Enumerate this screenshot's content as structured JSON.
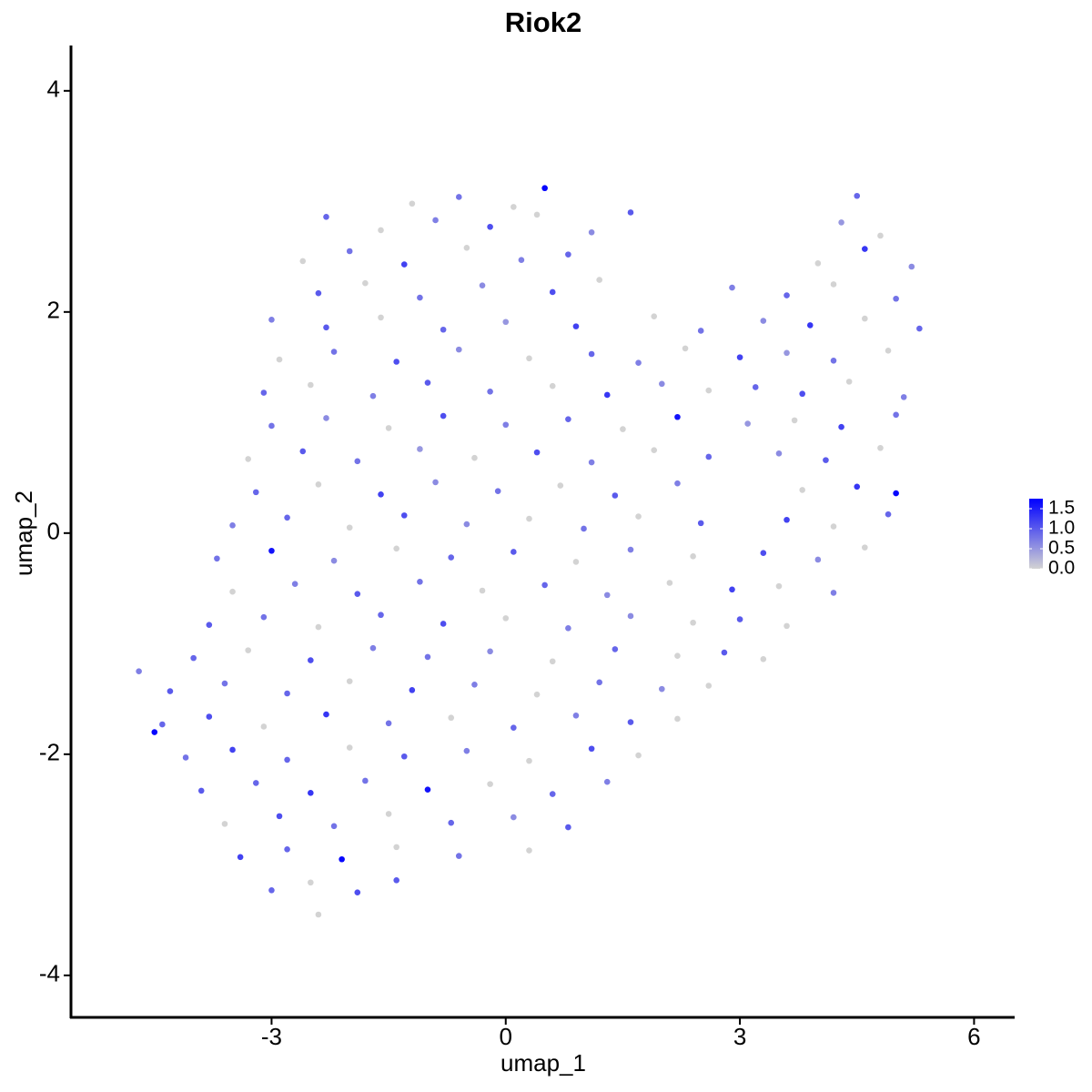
{
  "chart_data": {
    "type": "scatter",
    "title": "Riok2",
    "x_label": "umap_1",
    "y_label": "umap_2",
    "xlim": [
      -5.57,
      6.52
    ],
    "ylim": [
      -4.38,
      4.41
    ],
    "xticks": [
      -3,
      0,
      3,
      6
    ],
    "yticks": [
      -4,
      -2,
      0,
      2,
      4
    ],
    "color_low": "#d3d3d3",
    "color_high": "#0000ff",
    "color_lim": [
      0,
      1.75
    ],
    "color_ticks": [
      {
        "value": 0,
        "label": "0.0"
      },
      0.5,
      {
        "value": 1,
        "label": "1.0"
      },
      1.5
    ],
    "x": [
      -1.2,
      -0.6,
      0.1,
      0.5,
      4.5,
      -2.3,
      -1.6,
      -0.9,
      -0.2,
      0.4,
      1.1,
      1.6,
      4.3,
      4.8,
      -2.6,
      -2.0,
      -1.3,
      -0.5,
      0.2,
      0.8,
      4.0,
      4.6,
      5.2,
      -2.4,
      -1.8,
      -1.1,
      -0.3,
      0.6,
      1.2,
      2.9,
      3.6,
      4.2,
      5.0,
      -3.0,
      -2.3,
      -1.6,
      -0.8,
      0.0,
      0.9,
      1.9,
      2.5,
      3.3,
      3.9,
      4.6,
      5.3,
      -2.9,
      -2.2,
      -1.4,
      -0.6,
      0.3,
      1.1,
      1.7,
      2.3,
      3.0,
      3.6,
      4.2,
      4.9,
      -3.1,
      -2.5,
      -1.7,
      -1.0,
      -0.2,
      0.6,
      1.3,
      2.0,
      2.6,
      3.2,
      3.8,
      4.4,
      5.1,
      -3.0,
      -2.3,
      -1.5,
      -0.8,
      0.0,
      0.8,
      1.5,
      2.2,
      3.1,
      3.7,
      4.3,
      5.0,
      -3.3,
      -2.6,
      -1.9,
      -1.1,
      -0.4,
      0.4,
      1.1,
      1.9,
      2.6,
      3.5,
      4.1,
      4.8,
      -3.2,
      -2.4,
      -1.6,
      -0.9,
      -0.1,
      0.7,
      1.4,
      2.2,
      3.8,
      4.5,
      5.0,
      -3.5,
      -2.8,
      -2.0,
      -1.3,
      -0.5,
      0.3,
      1.0,
      1.7,
      2.5,
      3.6,
      4.2,
      4.9,
      -3.7,
      -3.0,
      -2.2,
      -1.4,
      -0.7,
      0.1,
      0.9,
      1.6,
      2.4,
      3.3,
      4.0,
      4.6,
      -3.5,
      -2.7,
      -1.9,
      -1.1,
      -0.3,
      0.5,
      1.3,
      2.1,
      2.9,
      3.5,
      4.2,
      -3.8,
      -3.1,
      -2.4,
      -1.6,
      -0.8,
      0.0,
      0.8,
      1.6,
      2.4,
      3.0,
      3.6,
      -4.0,
      -3.3,
      -2.5,
      -1.7,
      -1.0,
      -0.2,
      0.6,
      1.4,
      2.2,
      2.8,
      3.3,
      -4.3,
      -3.6,
      -2.8,
      -2.0,
      -1.2,
      -0.4,
      0.4,
      1.2,
      2.0,
      2.6,
      -4.4,
      -3.8,
      -3.1,
      -2.3,
      -1.5,
      -0.7,
      0.1,
      0.9,
      1.6,
      2.2,
      -4.1,
      -3.5,
      -2.8,
      -2.0,
      -1.3,
      -0.5,
      0.3,
      1.1,
      1.7,
      -3.9,
      -3.2,
      -2.5,
      -1.8,
      -1.0,
      -0.2,
      0.6,
      1.3,
      -3.6,
      -2.9,
      -2.2,
      -1.5,
      -0.7,
      0.1,
      0.8,
      -3.4,
      -2.8,
      -2.1,
      -1.4,
      -0.6,
      0.3,
      -3.0,
      -2.5,
      -1.9,
      -1.4,
      -2.4,
      -4.7,
      -4.5
    ],
    "y": [
      2.98,
      3.04,
      2.95,
      3.12,
      3.05,
      2.86,
      2.74,
      2.83,
      2.77,
      2.88,
      2.72,
      2.9,
      2.81,
      2.69,
      2.46,
      2.55,
      2.43,
      2.58,
      2.47,
      2.52,
      2.44,
      2.57,
      2.41,
      2.17,
      2.26,
      2.13,
      2.24,
      2.18,
      2.29,
      2.22,
      2.15,
      2.25,
      2.12,
      1.93,
      1.86,
      1.95,
      1.84,
      1.91,
      1.87,
      1.96,
      1.83,
      1.92,
      1.88,
      1.94,
      1.85,
      1.57,
      1.64,
      1.55,
      1.66,
      1.58,
      1.62,
      1.54,
      1.67,
      1.59,
      1.63,
      1.56,
      1.65,
      1.27,
      1.34,
      1.24,
      1.36,
      1.28,
      1.33,
      1.25,
      1.35,
      1.29,
      1.32,
      1.26,
      1.37,
      1.23,
      0.97,
      1.04,
      0.95,
      1.06,
      0.98,
      1.03,
      0.94,
      1.05,
      0.99,
      1.02,
      0.96,
      1.07,
      0.67,
      0.74,
      0.65,
      0.76,
      0.68,
      0.73,
      0.64,
      0.75,
      0.69,
      0.72,
      0.66,
      0.77,
      0.37,
      0.44,
      0.35,
      0.46,
      0.38,
      0.43,
      0.34,
      0.45,
      0.39,
      0.42,
      0.36,
      0.07,
      0.14,
      0.05,
      0.16,
      0.08,
      0.13,
      0.04,
      0.15,
      0.09,
      0.12,
      0.06,
      0.17,
      -0.23,
      -0.16,
      -0.25,
      -0.14,
      -0.22,
      -0.17,
      -0.26,
      -0.15,
      -0.21,
      -0.18,
      -0.24,
      -0.13,
      -0.53,
      -0.46,
      -0.55,
      -0.44,
      -0.52,
      -0.47,
      -0.56,
      -0.45,
      -0.51,
      -0.48,
      -0.54,
      -0.83,
      -0.76,
      -0.85,
      -0.74,
      -0.82,
      -0.77,
      -0.86,
      -0.75,
      -0.81,
      -0.78,
      -0.84,
      -1.13,
      -1.06,
      -1.15,
      -1.04,
      -1.12,
      -1.07,
      -1.16,
      -1.05,
      -1.11,
      -1.08,
      -1.14,
      -1.43,
      -1.36,
      -1.45,
      -1.34,
      -1.42,
      -1.37,
      -1.46,
      -1.35,
      -1.41,
      -1.38,
      -1.73,
      -1.66,
      -1.75,
      -1.64,
      -1.72,
      -1.67,
      -1.76,
      -1.65,
      -1.71,
      -1.68,
      -2.03,
      -1.96,
      -2.05,
      -1.94,
      -2.02,
      -1.97,
      -2.06,
      -1.95,
      -2.01,
      -2.33,
      -2.26,
      -2.35,
      -2.24,
      -2.32,
      -2.27,
      -2.36,
      -2.25,
      -2.63,
      -2.56,
      -2.65,
      -2.54,
      -2.62,
      -2.57,
      -2.66,
      -2.93,
      -2.86,
      -2.95,
      -2.84,
      -2.92,
      -2.87,
      -3.23,
      -3.16,
      -3.25,
      -3.14,
      -3.45,
      -1.25,
      -1.8
    ],
    "values": [
      0,
      0.8,
      0,
      1.7,
      0.9,
      0.9,
      0,
      0.7,
      1.1,
      0,
      0.6,
      1.0,
      0.5,
      0,
      0,
      0.8,
      1.2,
      0,
      0.7,
      0.9,
      0,
      1.3,
      0.6,
      1.0,
      0,
      0.8,
      0.6,
      1.1,
      0,
      0.7,
      0.9,
      0,
      0.8,
      0.7,
      1.0,
      0,
      0.9,
      0.5,
      1.2,
      0,
      0.8,
      0.6,
      1.3,
      0,
      0.9,
      0,
      0.8,
      1.1,
      0.6,
      0,
      0.9,
      0.7,
      0,
      1.2,
      0.5,
      0.8,
      0,
      0.9,
      0,
      0.7,
      1.0,
      0.8,
      0,
      1.3,
      0.6,
      0,
      0.9,
      1.1,
      0,
      0.7,
      0.8,
      0.6,
      0,
      1.1,
      0.7,
      0.9,
      0,
      1.6,
      0.5,
      0,
      1.2,
      0.8,
      0,
      1.0,
      0.8,
      0.5,
      0,
      1.1,
      0.7,
      0,
      0.9,
      0.6,
      1.0,
      0,
      0.9,
      0,
      1.2,
      0.6,
      0.8,
      0,
      1.0,
      0.7,
      0,
      1.3,
      1.7,
      0.7,
      0.9,
      0,
      1.1,
      0.6,
      0,
      0.8,
      0,
      1.0,
      1.2,
      0,
      0.9,
      0.8,
      1.6,
      0.6,
      0,
      0.9,
      1.0,
      0,
      0.7,
      0,
      1.1,
      0.6,
      0,
      0,
      0.7,
      1.0,
      0.8,
      0,
      0.9,
      0.6,
      0,
      1.2,
      0,
      0.7,
      1.0,
      0.8,
      0,
      0.9,
      1.1,
      0,
      0.7,
      0.6,
      0,
      1.0,
      0,
      0.9,
      0,
      1.1,
      0.7,
      0.8,
      0.6,
      0,
      0.9,
      0,
      1.0,
      0,
      1.0,
      0.8,
      0.9,
      0,
      1.2,
      0.7,
      0,
      0.8,
      0.6,
      0,
      0.9,
      1.1,
      0,
      1.3,
      0.8,
      0,
      0.9,
      0.7,
      1.0,
      0,
      0.8,
      1.2,
      0.9,
      0,
      1.0,
      0.7,
      0,
      1.1,
      0,
      1.0,
      0.9,
      1.3,
      0.8,
      1.6,
      0,
      0.9,
      0.7,
      0,
      1.1,
      0.8,
      0,
      0.9,
      0.6,
      1.0,
      1.2,
      0.9,
      1.7,
      0,
      0.8,
      0,
      0.9,
      0,
      1.1,
      1.0,
      0,
      0.7,
      1.7
    ]
  }
}
